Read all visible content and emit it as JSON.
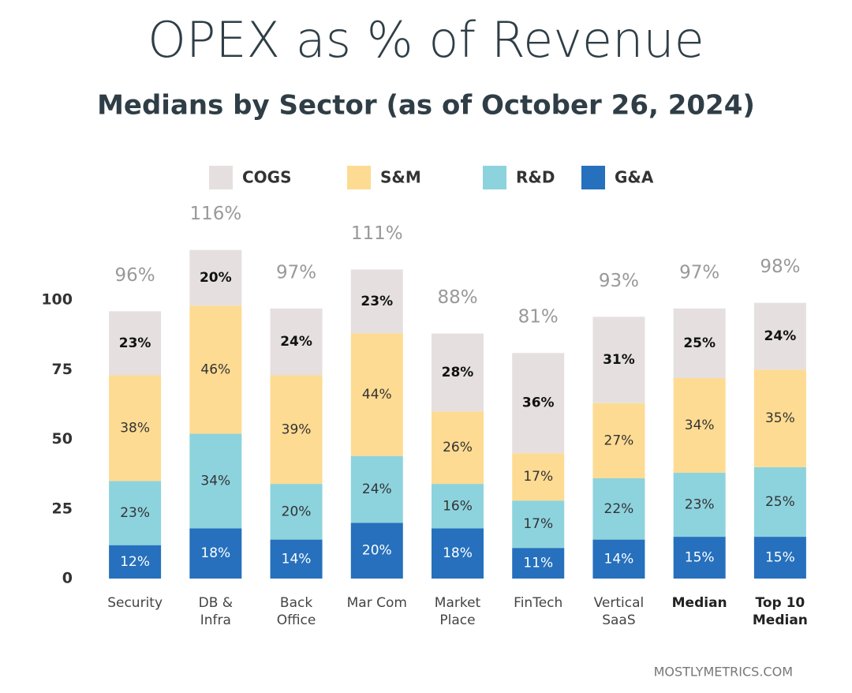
{
  "chart_data": {
    "type": "stacked_bar",
    "title": "OPEX as % of Revenue",
    "subtitle": "Medians by Sector (as of October 26, 2024)",
    "source": "MOSTLYMETRICS.COM",
    "categories": [
      "Security",
      "DB & Infra",
      "Back Office",
      "Mar Com",
      "Market Place",
      "FinTech",
      "Vertical SaaS",
      "Median",
      "Top 10 Median"
    ],
    "series": [
      {
        "name": "COGS",
        "color": "#e5e0df",
        "label_color": "#111111",
        "values": [
          23,
          20,
          24,
          23,
          28,
          36,
          31,
          25,
          24
        ],
        "value_labels": [
          "23%",
          "20%",
          "24%",
          "23%",
          "28%",
          "36%",
          "31%",
          "25%",
          "24%"
        ]
      },
      {
        "name": "S&M",
        "color": "#fddb92",
        "label_color": "#333333",
        "values": [
          38,
          46,
          39,
          44,
          26,
          17,
          27,
          34,
          35
        ],
        "value_labels": [
          "38%",
          "46%",
          "39%",
          "44%",
          "26%",
          "17%",
          "27%",
          "34%",
          "35%"
        ]
      },
      {
        "name": "R&D",
        "color": "#8dd3de",
        "label_color": "#333333",
        "values": [
          23,
          34,
          20,
          24,
          16,
          17,
          22,
          23,
          25
        ],
        "value_labels": [
          "23%",
          "34%",
          "20%",
          "24%",
          "16%",
          "17%",
          "22%",
          "23%",
          "25%"
        ]
      },
      {
        "name": "G&A",
        "color": "#2670bd",
        "label_color": "#ffffff",
        "values": [
          12,
          18,
          14,
          20,
          18,
          11,
          14,
          15,
          15
        ],
        "value_labels": [
          "12%",
          "18%",
          "14%",
          "20%",
          "18%",
          "11%",
          "14%",
          "15%",
          "15%"
        ]
      }
    ],
    "totals": [
      96,
      116,
      97,
      111,
      88,
      81,
      93,
      97,
      98
    ],
    "total_labels": [
      "96%",
      "116%",
      "97%",
      "111%",
      "88%",
      "81%",
      "93%",
      "97%",
      "98%"
    ],
    "ylim": [
      0,
      125
    ],
    "yticks": [
      0,
      25,
      50,
      75,
      100
    ]
  }
}
